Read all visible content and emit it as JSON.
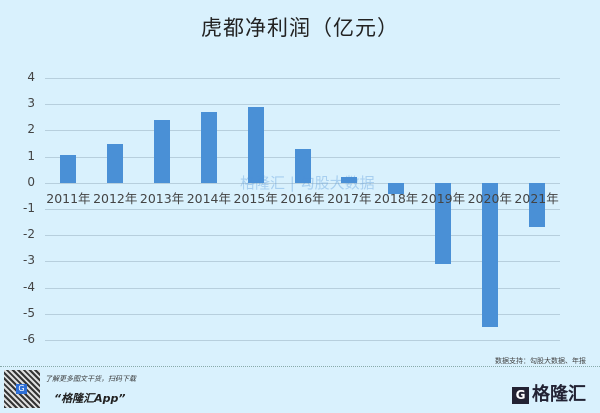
{
  "title": "虎都净利润（亿元）",
  "watermark": "格隆汇 | 勾股大数据",
  "source": "数据支持：勾股大数据、年报",
  "promo": {
    "line1": "了解更多图文干货，扫码下载",
    "line2": "“格隆汇App”"
  },
  "logo": {
    "icon": "G",
    "text": "格隆汇"
  },
  "colors": {
    "bar": "#4a90d6",
    "background": "#d9f1fd"
  },
  "chart_data": {
    "type": "bar",
    "title": "虎都净利润（亿元）",
    "xlabel": "",
    "ylabel": "亿元",
    "categories": [
      "2011年",
      "2012年",
      "2013年",
      "2014年",
      "2015年",
      "2016年",
      "2017年",
      "2018年",
      "2019年",
      "2020年",
      "2021年"
    ],
    "values": [
      1.05,
      1.5,
      2.4,
      2.72,
      2.88,
      1.3,
      0.22,
      -0.42,
      -3.1,
      -5.52,
      -1.7
    ],
    "ylim": [
      -6,
      4
    ],
    "yticks": [
      4,
      3,
      2,
      1,
      0,
      -1,
      -2,
      -3,
      -4,
      -5,
      -6
    ],
    "grid": true,
    "legend": "none"
  }
}
